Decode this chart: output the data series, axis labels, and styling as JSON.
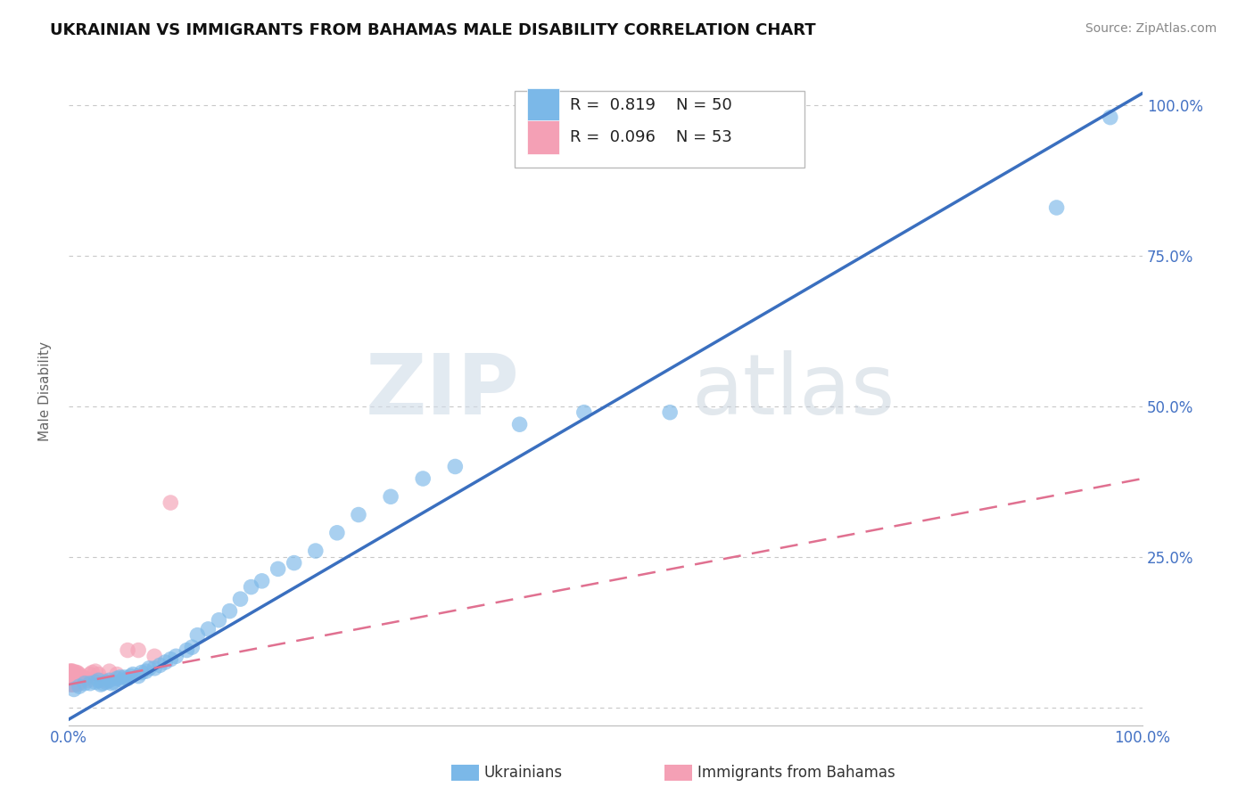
{
  "title": "UKRAINIAN VS IMMIGRANTS FROM BAHAMAS MALE DISABILITY CORRELATION CHART",
  "source": "Source: ZipAtlas.com",
  "ylabel": "Male Disability",
  "xlim": [
    0,
    1.0
  ],
  "ylim": [
    -0.03,
    1.08
  ],
  "xticks": [
    0.0,
    0.1,
    0.2,
    0.3,
    0.4,
    0.5,
    0.6,
    0.7,
    0.8,
    0.9,
    1.0
  ],
  "xticklabels": [
    "0.0%",
    "",
    "",
    "",
    "",
    "",
    "",
    "",
    "",
    "",
    "100.0%"
  ],
  "ytick_positions": [
    0.0,
    0.25,
    0.5,
    0.75,
    1.0
  ],
  "yticklabels": [
    "",
    "25.0%",
    "50.0%",
    "75.0%",
    "100.0%"
  ],
  "R_blue": 0.819,
  "N_blue": 50,
  "R_pink": 0.096,
  "N_pink": 53,
  "blue_color": "#7bb8e8",
  "pink_color": "#f4a0b5",
  "blue_line_color": "#3a6fbf",
  "pink_line_color": "#e07090",
  "watermark_zip": "ZIP",
  "watermark_atlas": "atlas",
  "background_color": "#ffffff",
  "grid_color": "#c8c8c8",
  "blue_scatter_x": [
    0.005,
    0.01,
    0.015,
    0.02,
    0.025,
    0.028,
    0.03,
    0.032,
    0.035,
    0.038,
    0.04,
    0.042,
    0.045,
    0.048,
    0.05,
    0.052,
    0.055,
    0.058,
    0.06,
    0.065,
    0.068,
    0.072,
    0.075,
    0.08,
    0.085,
    0.09,
    0.095,
    0.1,
    0.11,
    0.115,
    0.12,
    0.13,
    0.14,
    0.15,
    0.16,
    0.17,
    0.18,
    0.195,
    0.21,
    0.23,
    0.25,
    0.27,
    0.3,
    0.33,
    0.36,
    0.42,
    0.48,
    0.56,
    0.92,
    0.97
  ],
  "blue_scatter_y": [
    0.03,
    0.035,
    0.04,
    0.04,
    0.042,
    0.045,
    0.038,
    0.04,
    0.042,
    0.045,
    0.04,
    0.042,
    0.048,
    0.05,
    0.045,
    0.05,
    0.048,
    0.052,
    0.055,
    0.052,
    0.058,
    0.06,
    0.065,
    0.065,
    0.07,
    0.075,
    0.08,
    0.085,
    0.095,
    0.1,
    0.12,
    0.13,
    0.145,
    0.16,
    0.18,
    0.2,
    0.21,
    0.23,
    0.24,
    0.26,
    0.29,
    0.32,
    0.35,
    0.38,
    0.4,
    0.47,
    0.49,
    0.49,
    0.83,
    0.98
  ],
  "pink_scatter_x": [
    0.001,
    0.001,
    0.001,
    0.001,
    0.001,
    0.002,
    0.002,
    0.002,
    0.002,
    0.002,
    0.002,
    0.003,
    0.003,
    0.003,
    0.003,
    0.003,
    0.003,
    0.004,
    0.004,
    0.004,
    0.004,
    0.004,
    0.005,
    0.005,
    0.005,
    0.005,
    0.005,
    0.006,
    0.006,
    0.006,
    0.007,
    0.007,
    0.007,
    0.008,
    0.008,
    0.008,
    0.01,
    0.01,
    0.012,
    0.014,
    0.016,
    0.018,
    0.02,
    0.022,
    0.025,
    0.028,
    0.032,
    0.038,
    0.045,
    0.055,
    0.065,
    0.08,
    0.095
  ],
  "pink_scatter_y": [
    0.04,
    0.045,
    0.05,
    0.055,
    0.06,
    0.038,
    0.042,
    0.048,
    0.052,
    0.055,
    0.06,
    0.038,
    0.042,
    0.048,
    0.052,
    0.055,
    0.06,
    0.04,
    0.045,
    0.05,
    0.055,
    0.06,
    0.038,
    0.042,
    0.048,
    0.052,
    0.058,
    0.04,
    0.045,
    0.055,
    0.04,
    0.048,
    0.058,
    0.038,
    0.045,
    0.058,
    0.04,
    0.055,
    0.045,
    0.05,
    0.048,
    0.045,
    0.055,
    0.058,
    0.06,
    0.055,
    0.045,
    0.06,
    0.055,
    0.095,
    0.095,
    0.085,
    0.34
  ],
  "blue_line_x0": 0.0,
  "blue_line_y0": -0.02,
  "blue_line_x1": 1.0,
  "blue_line_y1": 1.02,
  "pink_line_x0": 0.0,
  "pink_line_y0": 0.038,
  "pink_line_x1": 1.0,
  "pink_line_y1": 0.38
}
